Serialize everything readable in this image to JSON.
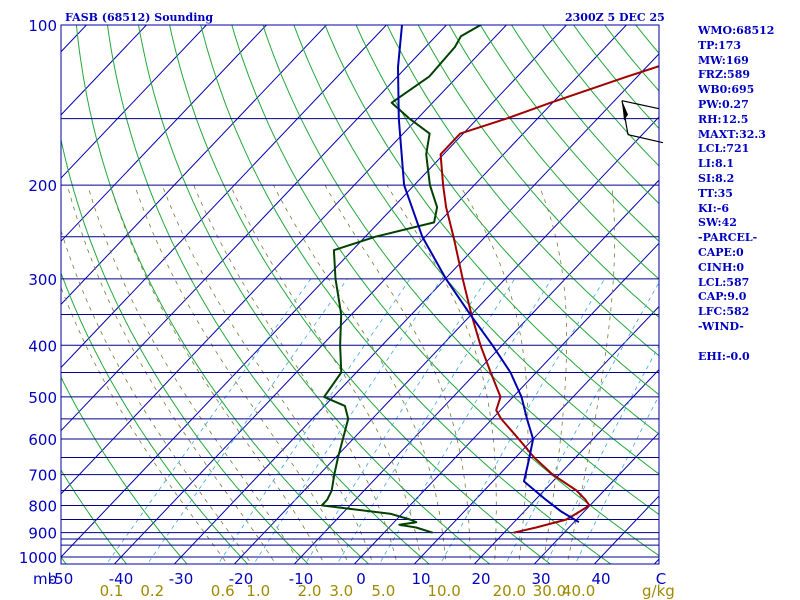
{
  "chart_data": {
    "type": "line",
    "title": "FASB (68512) Sounding",
    "valid_time": "2300Z  5 DEC 25",
    "pressure_unit_label": "mb",
    "mixing_ratio_unit_label": "g/kg",
    "pressure_axis": {
      "range_mb": [
        1000,
        100
      ],
      "scale": "log",
      "tick_labels": [
        "100",
        "200",
        "300",
        "400",
        "500",
        "600",
        "700",
        "800",
        "900",
        "1000"
      ]
    },
    "temperature_axis": {
      "range_c": [
        -50,
        50
      ],
      "tick_labels": [
        "-50",
        "-40",
        "-30",
        "-20",
        "-10",
        "0",
        "10",
        "20",
        "30",
        "40",
        "C"
      ]
    },
    "mixing_ratio_labels": [
      "0.1",
      "0.2",
      "0.6",
      "1.0",
      "2.0",
      "3.0",
      "5.0",
      "10.0",
      "20.0",
      "30.0",
      "40.0"
    ],
    "isobars_mb": [
      100,
      150,
      200,
      250,
      300,
      350,
      400,
      450,
      500,
      550,
      600,
      650,
      700,
      750,
      800,
      850,
      900,
      925,
      950,
      1000
    ],
    "grid": true,
    "series": [
      {
        "name": "",
        "kind": "temperature",
        "color": "#a00000",
        "points": [
          [
            900,
            21.6
          ],
          [
            880,
            24.5
          ],
          [
            850,
            28.3
          ],
          [
            820,
            29.3
          ],
          [
            800,
            29.9
          ],
          [
            780,
            28.3
          ],
          [
            750,
            25.4
          ],
          [
            700,
            18.9
          ],
          [
            650,
            13.1
          ],
          [
            600,
            7.6
          ],
          [
            550,
            1.5
          ],
          [
            530,
            -0.7
          ],
          [
            500,
            -2.1
          ],
          [
            450,
            -7.6
          ],
          [
            400,
            -13.6
          ],
          [
            350,
            -20.0
          ],
          [
            300,
            -27.1
          ],
          [
            250,
            -35.3
          ],
          [
            220,
            -41.2
          ],
          [
            200,
            -45.2
          ],
          [
            175,
            -50.5
          ],
          [
            160,
            -50.5
          ],
          [
            150,
            -45.2
          ],
          [
            140,
            -40.3
          ],
          [
            125,
            -31.7
          ],
          [
            110,
            -21.3
          ],
          [
            105,
            -18.0
          ],
          [
            100,
            -15.9
          ]
        ]
      },
      {
        "name": "",
        "kind": "dewpoint",
        "color": "#004000",
        "points": [
          [
            900,
            8.1
          ],
          [
            880,
            4.5
          ],
          [
            870,
            1.3
          ],
          [
            860,
            3.7
          ],
          [
            850,
            2.2
          ],
          [
            830,
            -1.8
          ],
          [
            800,
            -14.7
          ],
          [
            780,
            -14.7
          ],
          [
            750,
            -15.4
          ],
          [
            700,
            -17.5
          ],
          [
            650,
            -19.6
          ],
          [
            600,
            -21.7
          ],
          [
            550,
            -24.0
          ],
          [
            520,
            -26.6
          ],
          [
            500,
            -31.5
          ],
          [
            450,
            -32.5
          ],
          [
            400,
            -37.0
          ],
          [
            350,
            -41.7
          ],
          [
            300,
            -48.3
          ],
          [
            265,
            -53.1
          ],
          [
            250,
            -48.3
          ],
          [
            235,
            -40.8
          ],
          [
            220,
            -42.7
          ],
          [
            200,
            -47.4
          ],
          [
            175,
            -52.9
          ],
          [
            160,
            -55.6
          ],
          [
            150,
            -61.3
          ],
          [
            140,
            -66.8
          ],
          [
            125,
            -64.7
          ],
          [
            110,
            -65.1
          ],
          [
            105,
            -65.8
          ],
          [
            100,
            -64.3
          ]
        ]
      },
      {
        "name": "",
        "kind": "parcel",
        "color": "#0000b0",
        "points": [
          [
            860,
            30.8
          ],
          [
            820,
            26.0
          ],
          [
            780,
            21.7
          ],
          [
            721,
            15.2
          ],
          [
            650,
            12.3
          ],
          [
            600,
            10.0
          ],
          [
            550,
            5.8
          ],
          [
            500,
            1.4
          ],
          [
            450,
            -4.3
          ],
          [
            400,
            -11.6
          ],
          [
            350,
            -20.2
          ],
          [
            300,
            -29.9
          ],
          [
            250,
            -40.5
          ],
          [
            200,
            -51.7
          ],
          [
            150,
            -63.1
          ],
          [
            120,
            -71.4
          ],
          [
            100,
            -77.4
          ]
        ]
      }
    ],
    "wind_barb": {
      "pressure_mb": 150,
      "present": true
    }
  },
  "indices": [
    "WMO:68512",
    "TP:173",
    "MW:169",
    "FRZ:589",
    "WB0:695",
    "PW:0.27",
    "RH:12.5",
    "MAXT:32.3",
    "LCL:721",
    "LI:8.1",
    "SI:8.2",
    "TT:35",
    "KI:-6",
    "SW:42",
    "-PARCEL-",
    "CAPE:0",
    "CINH:0",
    "LCL:587",
    "CAP:9.0",
    "LFC:582",
    "-WIND-",
    "",
    "EHI:-0.0"
  ],
  "colors": {
    "frame": "#0000a0",
    "isobar": "#00008c",
    "isotherm": "#0000b4",
    "dry_adiabat": "#22a83a",
    "moist_adiabat": "#7a7a3a",
    "mixing_ratio": "#3aaae0",
    "temperature": "#a00000",
    "dewpoint": "#004000",
    "parcel": "#0000b0",
    "wind_barb": "#000000"
  }
}
